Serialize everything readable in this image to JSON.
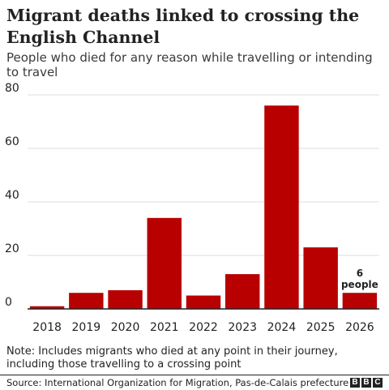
{
  "chart_data": {
    "type": "bar",
    "title": "Migrant deaths linked to crossing the English Channel",
    "subtitle": "People who died for any reason while travelling or intending to travel",
    "categories": [
      "2018",
      "2019",
      "2020",
      "2021",
      "2022",
      "2023",
      "2024",
      "2025",
      "2026"
    ],
    "values": [
      1,
      6,
      7,
      34,
      5,
      13,
      76,
      23,
      6
    ],
    "data_labels": [
      {
        "category": "2026",
        "lines": [
          "6",
          "people"
        ]
      }
    ],
    "yticks": [
      0,
      20,
      40,
      60,
      80
    ],
    "ylim": [
      0,
      80
    ],
    "xlabel": "",
    "ylabel": "",
    "grid": "horizontal",
    "bar_color": "#b80000",
    "grid_color": "#dcdcdc",
    "axis_color": "#222222"
  },
  "note": "Note: Includes migrants who died at any point in their journey, including those travelling to a crossing point",
  "source": "Source: International Organization for Migration, Pas-de-Calais prefecture",
  "logo": [
    "B",
    "B",
    "C"
  ]
}
